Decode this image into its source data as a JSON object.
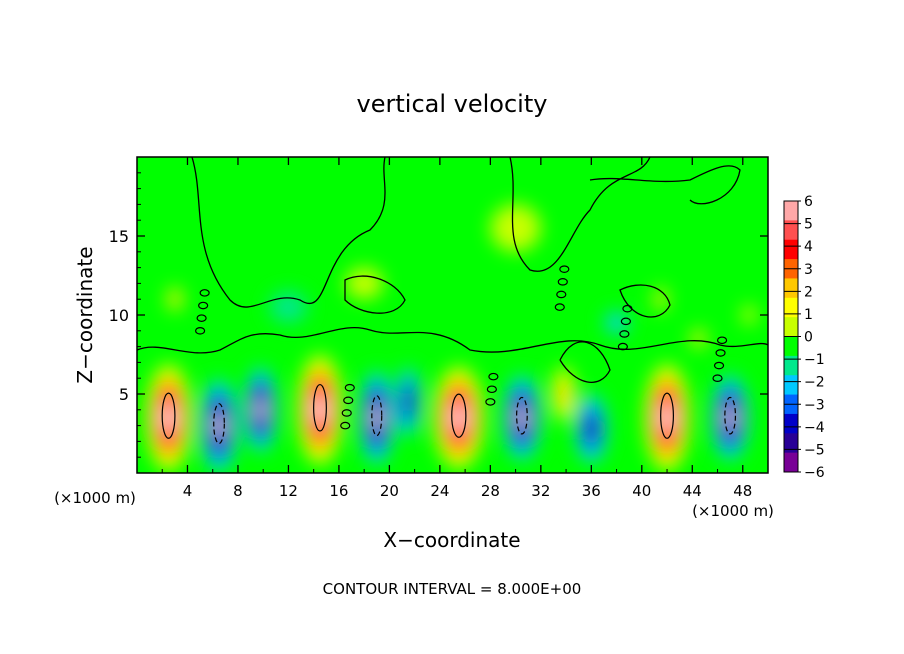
{
  "chart_data": {
    "type": "heatmap",
    "title": "vertical velocity",
    "xlabel": "X−coordinate",
    "ylabel": "Z−coordinate",
    "x_unit_left": "(×1000 m)",
    "x_unit_right": "(×1000 m)",
    "xlim": [
      0,
      50
    ],
    "ylim": [
      0,
      20
    ],
    "x_ticks": [
      4,
      8,
      12,
      16,
      20,
      24,
      28,
      32,
      36,
      40,
      44,
      48
    ],
    "y_ticks": [
      5,
      10,
      15
    ],
    "colorbar": {
      "ticks": [
        "6",
        "5",
        "4",
        "3",
        "2",
        "1",
        "0",
        "−1",
        "−2",
        "−3",
        "−4",
        "−5",
        "−6"
      ],
      "colors": [
        "#ffa8a8",
        "#ff5050",
        "#ff0000",
        "#ff6400",
        "#ffc800",
        "#ffff00",
        "#c8ff00",
        "#00ff00",
        "#00e88c",
        "#00c8ff",
        "#0064ff",
        "#0000c8",
        "#280096",
        "#780096"
      ]
    },
    "cells": [
      {
        "x": 2.5,
        "z": 3.5,
        "w": 3.6,
        "h": 6.8,
        "amp": 8.5
      },
      {
        "x": 6.5,
        "z": 3.0,
        "w": 3.0,
        "h": 6.0,
        "amp": -7.5
      },
      {
        "x": 9.8,
        "z": 4.0,
        "w": 2.6,
        "h": 5.5,
        "amp": -6.5
      },
      {
        "x": 14.5,
        "z": 4.0,
        "w": 3.6,
        "h": 7.0,
        "amp": 9.0
      },
      {
        "x": 19.0,
        "z": 3.5,
        "w": 2.8,
        "h": 6.0,
        "amp": -7.5
      },
      {
        "x": 21.5,
        "z": 4.5,
        "w": 2.0,
        "h": 4.5,
        "amp": -5.0
      },
      {
        "x": 25.5,
        "z": 3.5,
        "w": 4.0,
        "h": 6.5,
        "amp": 8.5
      },
      {
        "x": 30.5,
        "z": 3.5,
        "w": 3.0,
        "h": 5.5,
        "amp": -7.0
      },
      {
        "x": 33.8,
        "z": 5.0,
        "w": 1.8,
        "h": 3.5,
        "amp": 2.5
      },
      {
        "x": 36.0,
        "z": 2.8,
        "w": 2.6,
        "h": 4.5,
        "amp": -4.5
      },
      {
        "x": 42.0,
        "z": 3.5,
        "w": 3.6,
        "h": 6.8,
        "amp": 8.5
      },
      {
        "x": 47.0,
        "z": 3.5,
        "w": 3.0,
        "h": 5.5,
        "amp": -7.0
      },
      {
        "x": 3.0,
        "z": 11.0,
        "w": 1.2,
        "h": 1.5,
        "amp": 2.5
      },
      {
        "x": 41.5,
        "z": 11.0,
        "w": 1.0,
        "h": 1.5,
        "amp": 3.0
      },
      {
        "x": 44.5,
        "z": 8.5,
        "w": 1.2,
        "h": 1.2,
        "amp": 2.5
      },
      {
        "x": 48.5,
        "z": 10.0,
        "w": 1.0,
        "h": 1.2,
        "amp": 2.0
      },
      {
        "x": 18.0,
        "z": 12.0,
        "w": 3.0,
        "h": 2.0,
        "amp": 1.2
      },
      {
        "x": 30.0,
        "z": 15.5,
        "w": 4.0,
        "h": 3.0,
        "amp": 0.8
      },
      {
        "x": 38.0,
        "z": 9.5,
        "w": 2.0,
        "h": 1.5,
        "amp": -1.5
      },
      {
        "x": 12.0,
        "z": 10.5,
        "w": 3.0,
        "h": 2.0,
        "amp": -1.0
      }
    ],
    "footer": "CONTOUR INTERVAL = 8.000E+00"
  }
}
